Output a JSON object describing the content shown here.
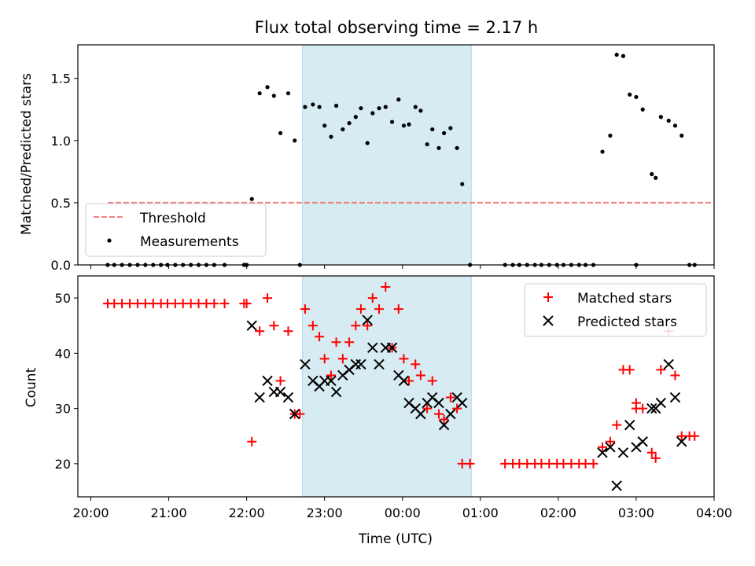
{
  "chart_data": [
    {
      "type": "scatter",
      "title": "Flux total observing time = 2.17 h",
      "ylabel": "Matched/Predicted stars",
      "xlim": [
        "19:50",
        "04:00"
      ],
      "ylim": [
        0,
        1.77
      ],
      "yticks": [
        "0.0",
        "0.5",
        "1.0",
        "1.5"
      ],
      "shaded_interval": [
        "22:43",
        "00:53"
      ],
      "legend_position": "lower-left",
      "threshold": {
        "name": "Threshold",
        "value": 0.5,
        "x_range": [
          "20:13",
          "03:58"
        ],
        "color": "#f08080"
      },
      "series": [
        {
          "name": "Measurements",
          "color": "#000000",
          "points": [
            [
              "20:13",
              0
            ],
            [
              "20:18",
              0
            ],
            [
              "20:24",
              0
            ],
            [
              "20:30",
              0
            ],
            [
              "20:36",
              0
            ],
            [
              "20:42",
              0
            ],
            [
              "20:48",
              0
            ],
            [
              "20:54",
              0
            ],
            [
              "20:59",
              0
            ],
            [
              "21:05",
              0
            ],
            [
              "21:11",
              0
            ],
            [
              "21:17",
              0
            ],
            [
              "21:23",
              0
            ],
            [
              "21:29",
              0
            ],
            [
              "21:35",
              0
            ],
            [
              "21:43",
              0
            ],
            [
              "21:58",
              0
            ],
            [
              "22:00",
              0
            ],
            [
              "22:04",
              0.53
            ],
            [
              "22:10",
              1.38
            ],
            [
              "22:16",
              1.43
            ],
            [
              "22:21",
              1.36
            ],
            [
              "22:26",
              1.06
            ],
            [
              "22:32",
              1.38
            ],
            [
              "22:37",
              1.0
            ],
            [
              "22:41",
              0
            ],
            [
              "22:45",
              1.27
            ],
            [
              "22:51",
              1.29
            ],
            [
              "22:56",
              1.27
            ],
            [
              "23:00",
              1.12
            ],
            [
              "23:05",
              1.03
            ],
            [
              "23:09",
              1.28
            ],
            [
              "23:14",
              1.09
            ],
            [
              "23:19",
              1.14
            ],
            [
              "23:24",
              1.19
            ],
            [
              "23:28",
              1.26
            ],
            [
              "23:33",
              0.98
            ],
            [
              "23:37",
              1.22
            ],
            [
              "23:42",
              1.26
            ],
            [
              "23:47",
              1.27
            ],
            [
              "23:52",
              1.15
            ],
            [
              "23:57",
              1.33
            ],
            [
              "00:01",
              1.12
            ],
            [
              "00:05",
              1.13
            ],
            [
              "00:10",
              1.27
            ],
            [
              "00:14",
              1.24
            ],
            [
              "00:19",
              0.97
            ],
            [
              "00:23",
              1.09
            ],
            [
              "00:28",
              0.94
            ],
            [
              "00:32",
              1.06
            ],
            [
              "00:37",
              1.1
            ],
            [
              "00:42",
              0.94
            ],
            [
              "00:46",
              0.65
            ],
            [
              "00:52",
              0
            ],
            [
              "01:19",
              0
            ],
            [
              "01:25",
              0
            ],
            [
              "01:30",
              0
            ],
            [
              "01:36",
              0
            ],
            [
              "01:42",
              0
            ],
            [
              "01:47",
              0
            ],
            [
              "01:53",
              0
            ],
            [
              "01:59",
              0
            ],
            [
              "02:04",
              0
            ],
            [
              "02:10",
              0
            ],
            [
              "02:16",
              0
            ],
            [
              "02:21",
              0
            ],
            [
              "02:27",
              0
            ],
            [
              "02:34",
              0.91
            ],
            [
              "02:40",
              1.04
            ],
            [
              "02:45",
              1.69
            ],
            [
              "02:50",
              1.68
            ],
            [
              "02:55",
              1.37
            ],
            [
              "03:00",
              1.35
            ],
            [
              "03:05",
              1.25
            ],
            [
              "03:00",
              0
            ],
            [
              "03:12",
              0.73
            ],
            [
              "03:15",
              0.7
            ],
            [
              "03:19",
              1.19
            ],
            [
              "03:25",
              1.16
            ],
            [
              "03:30",
              1.12
            ],
            [
              "03:35",
              1.04
            ],
            [
              "03:41",
              0
            ],
            [
              "03:45",
              0
            ]
          ]
        }
      ]
    },
    {
      "type": "scatter",
      "ylabel": "Count",
      "xlabel": "Time (UTC)",
      "xlim": [
        "19:50",
        "04:00"
      ],
      "ylim": [
        14,
        54
      ],
      "yticks": [
        "20",
        "30",
        "40",
        "50"
      ],
      "xticks": [
        "20:00",
        "21:00",
        "22:00",
        "23:00",
        "00:00",
        "01:00",
        "02:00",
        "03:00",
        "04:00"
      ],
      "shaded_interval": [
        "22:43",
        "00:53"
      ],
      "legend_position": "upper-right",
      "series": [
        {
          "name": "Matched stars",
          "marker": "plus",
          "color": "#ff0000",
          "points": [
            [
              "20:13",
              49
            ],
            [
              "20:18",
              49
            ],
            [
              "20:24",
              49
            ],
            [
              "20:30",
              49
            ],
            [
              "20:36",
              49
            ],
            [
              "20:42",
              49
            ],
            [
              "20:48",
              49
            ],
            [
              "20:54",
              49
            ],
            [
              "20:59",
              49
            ],
            [
              "21:05",
              49
            ],
            [
              "21:11",
              49
            ],
            [
              "21:17",
              49
            ],
            [
              "21:23",
              49
            ],
            [
              "21:29",
              49
            ],
            [
              "21:35",
              49
            ],
            [
              "21:43",
              49
            ],
            [
              "21:58",
              49
            ],
            [
              "22:00",
              49
            ],
            [
              "22:04",
              24
            ],
            [
              "22:10",
              44
            ],
            [
              "22:16",
              50
            ],
            [
              "22:21",
              45
            ],
            [
              "22:26",
              35
            ],
            [
              "22:32",
              44
            ],
            [
              "22:37",
              29
            ],
            [
              "22:41",
              29
            ],
            [
              "22:45",
              48
            ],
            [
              "22:51",
              45
            ],
            [
              "22:56",
              43
            ],
            [
              "23:00",
              39
            ],
            [
              "23:05",
              36
            ],
            [
              "23:09",
              42
            ],
            [
              "23:14",
              39
            ],
            [
              "23:19",
              42
            ],
            [
              "23:24",
              45
            ],
            [
              "23:28",
              48
            ],
            [
              "23:33",
              45
            ],
            [
              "23:37",
              50
            ],
            [
              "23:42",
              48
            ],
            [
              "23:47",
              52
            ],
            [
              "23:52",
              41
            ],
            [
              "23:57",
              48
            ],
            [
              "00:01",
              39
            ],
            [
              "00:05",
              35
            ],
            [
              "00:10",
              38
            ],
            [
              "00:14",
              36
            ],
            [
              "00:19",
              30
            ],
            [
              "00:23",
              35
            ],
            [
              "00:28",
              29
            ],
            [
              "00:32",
              28
            ],
            [
              "00:37",
              32
            ],
            [
              "00:42",
              30
            ],
            [
              "00:46",
              20
            ],
            [
              "00:52",
              20
            ],
            [
              "01:19",
              20
            ],
            [
              "01:25",
              20
            ],
            [
              "01:30",
              20
            ],
            [
              "01:36",
              20
            ],
            [
              "01:42",
              20
            ],
            [
              "01:47",
              20
            ],
            [
              "01:53",
              20
            ],
            [
              "01:59",
              20
            ],
            [
              "02:04",
              20
            ],
            [
              "02:10",
              20
            ],
            [
              "02:16",
              20
            ],
            [
              "02:21",
              20
            ],
            [
              "02:27",
              20
            ],
            [
              "02:34",
              23
            ],
            [
              "02:40",
              24
            ],
            [
              "02:45",
              27
            ],
            [
              "02:50",
              37
            ],
            [
              "02:55",
              37
            ],
            [
              "03:00",
              31
            ],
            [
              "03:05",
              30
            ],
            [
              "03:00",
              30
            ],
            [
              "03:12",
              22
            ],
            [
              "03:15",
              21
            ],
            [
              "03:19",
              37
            ],
            [
              "03:25",
              44
            ],
            [
              "03:30",
              36
            ],
            [
              "03:35",
              25
            ],
            [
              "03:41",
              25
            ],
            [
              "03:45",
              25
            ]
          ]
        },
        {
          "name": "Predicted stars",
          "marker": "x",
          "color": "#000000",
          "points": [
            [
              "22:04",
              45
            ],
            [
              "22:10",
              32
            ],
            [
              "22:16",
              35
            ],
            [
              "22:21",
              33
            ],
            [
              "22:26",
              33
            ],
            [
              "22:32",
              32
            ],
            [
              "22:37",
              29
            ],
            [
              "22:45",
              38
            ],
            [
              "22:51",
              35
            ],
            [
              "22:56",
              34
            ],
            [
              "23:00",
              35
            ],
            [
              "23:05",
              35
            ],
            [
              "23:09",
              33
            ],
            [
              "23:14",
              36
            ],
            [
              "23:19",
              37
            ],
            [
              "23:24",
              38
            ],
            [
              "23:28",
              38
            ],
            [
              "23:33",
              46
            ],
            [
              "23:37",
              41
            ],
            [
              "23:42",
              38
            ],
            [
              "23:47",
              41
            ],
            [
              "23:52",
              41
            ],
            [
              "23:57",
              36
            ],
            [
              "00:01",
              35
            ],
            [
              "00:05",
              31
            ],
            [
              "00:10",
              30
            ],
            [
              "00:14",
              29
            ],
            [
              "00:19",
              31
            ],
            [
              "00:23",
              32
            ],
            [
              "00:28",
              31
            ],
            [
              "00:32",
              27
            ],
            [
              "00:37",
              29
            ],
            [
              "00:42",
              32
            ],
            [
              "00:46",
              31
            ],
            [
              "02:34",
              22
            ],
            [
              "02:40",
              23
            ],
            [
              "02:45",
              16
            ],
            [
              "02:50",
              22
            ],
            [
              "02:55",
              27
            ],
            [
              "03:00",
              23
            ],
            [
              "03:05",
              24
            ],
            [
              "03:12",
              30
            ],
            [
              "03:15",
              30
            ],
            [
              "03:19",
              31
            ],
            [
              "03:25",
              38
            ],
            [
              "03:30",
              32
            ],
            [
              "03:35",
              24
            ]
          ]
        }
      ]
    }
  ]
}
